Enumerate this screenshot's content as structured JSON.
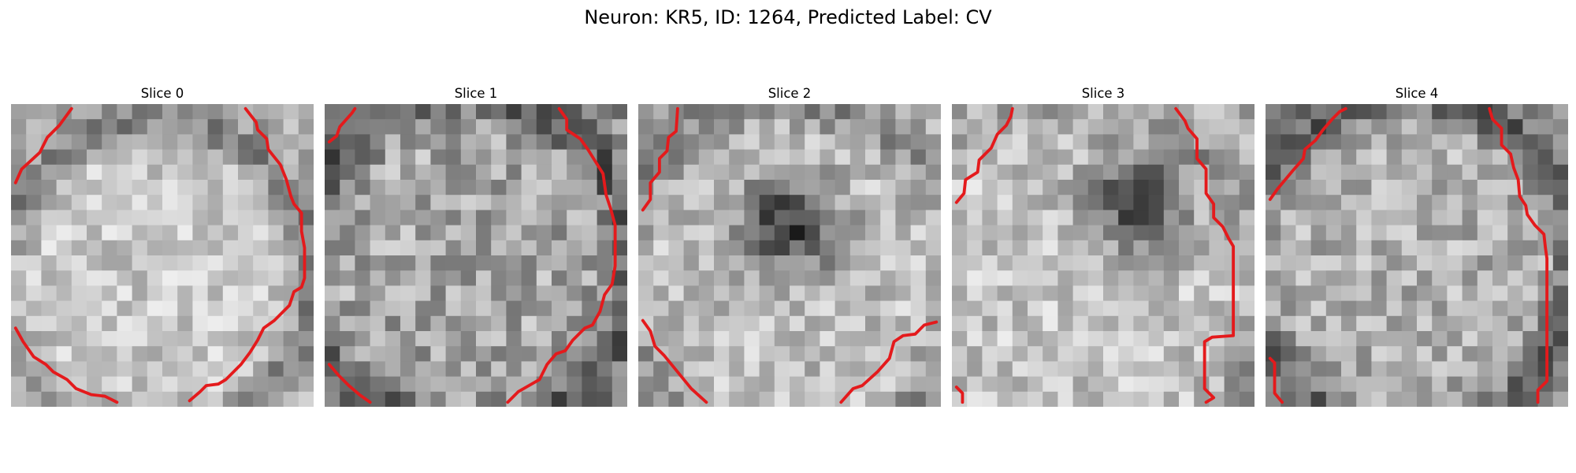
{
  "figure": {
    "title": "Neuron: KR5, ID: 1264, Predicted Label: CV"
  },
  "slices": [
    {
      "title": "Slice 0",
      "dark_blobs": [],
      "contour_color": "#e41a1c"
    },
    {
      "title": "Slice 1",
      "dark_blobs": [],
      "contour_color": "#e41a1c"
    },
    {
      "title": "Slice 2",
      "dark_blobs": [
        {
          "cx": 10,
          "cy": 8,
          "r": 3.2,
          "depth": 130
        }
      ],
      "contour_color": "#e41a1c"
    },
    {
      "title": "Slice 3",
      "dark_blobs": [
        {
          "cx": 12.5,
          "cy": 6.3,
          "r": 3.2,
          "depth": 140
        }
      ],
      "contour_color": "#e41a1c"
    },
    {
      "title": "Slice 4",
      "dark_blobs": [],
      "contour_color": "#e41a1c"
    }
  ],
  "style": {
    "contour_color": "#e41a1c",
    "cmap": "gray"
  }
}
